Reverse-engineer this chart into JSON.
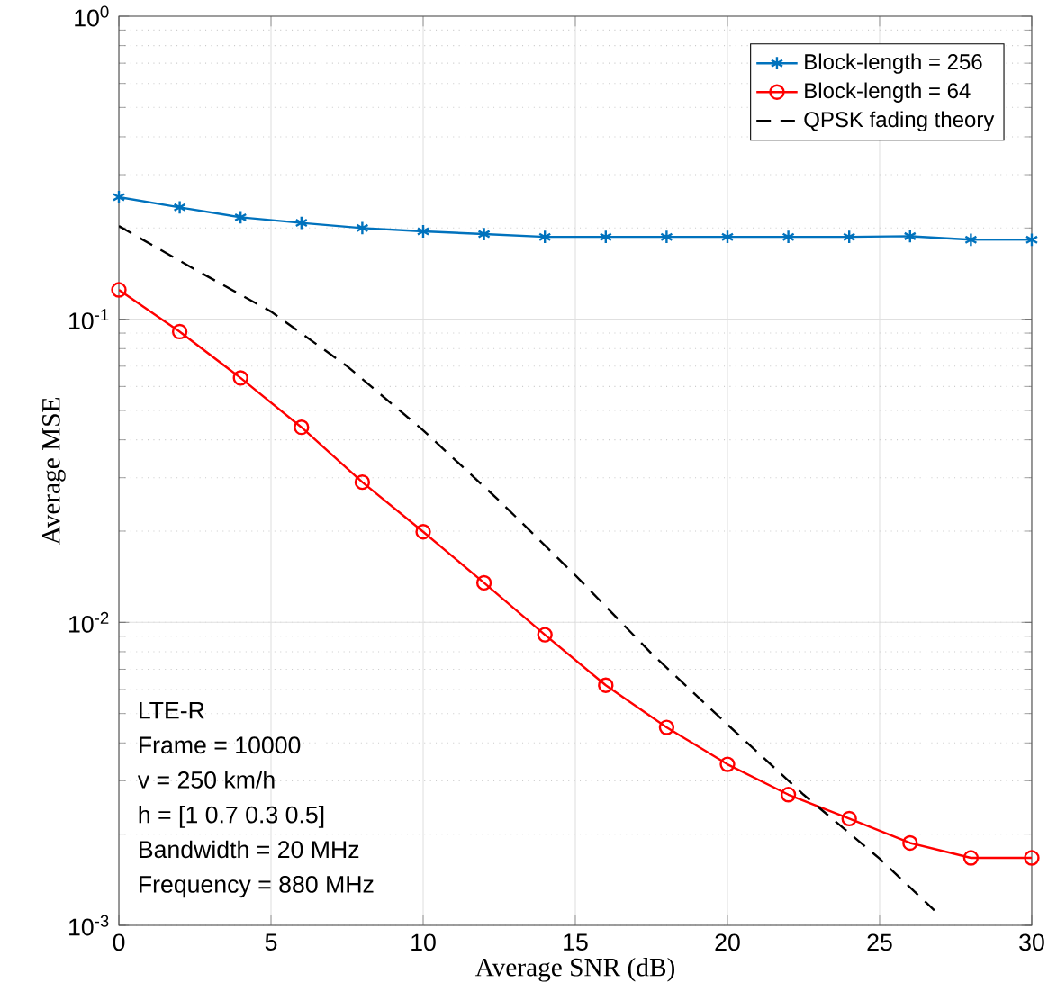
{
  "chart_data": {
    "type": "line",
    "xlabel": "Average SNR (dB)",
    "ylabel": "Average MSE",
    "log": "y",
    "grid": true,
    "legend": "top right",
    "xlim": [
      0,
      30
    ],
    "xticks": [
      0,
      5,
      10,
      15,
      20,
      25,
      30
    ],
    "ylim": [
      0.001,
      1
    ],
    "yticks": [
      {
        "value": 0.001,
        "label": "10$^{-3}$"
      },
      {
        "value": 0.01,
        "label": "10$^{-2}$"
      },
      {
        "value": 0.1,
        "label": "10$^{-1}$"
      },
      {
        "value": 1,
        "label": "10$^{0}$"
      }
    ],
    "x": [
      0,
      2,
      4,
      6,
      8,
      10,
      12,
      14,
      16,
      18,
      20,
      22,
      24,
      26,
      28,
      30
    ],
    "series": [
      {
        "name": "Block-length = 256",
        "color": "#0072bd",
        "marker": "cross",
        "line_style": "solid",
        "values": [
          0.253,
          0.234,
          0.217,
          0.208,
          0.2,
          0.195,
          0.191,
          0.187,
          0.187,
          0.187,
          0.187,
          0.187,
          0.187,
          0.188,
          0.183,
          0.183
        ]
      },
      {
        "name": "Block-length = 64",
        "color": "#ff0000",
        "marker": "circle",
        "line_style": "solid",
        "values": [
          0.125,
          0.091,
          0.064,
          0.044,
          0.029,
          0.0199,
          0.0135,
          0.0091,
          0.0062,
          0.0045,
          0.0034,
          0.0027,
          0.00225,
          0.00187,
          0.00167,
          0.00167
        ]
      },
      {
        "name": "QPSK fading theory",
        "color": "#000000",
        "marker": "none",
        "line_style": "dashed",
        "x": [
          0,
          2.5,
          5,
          7.5,
          10,
          12.5,
          15,
          17.5,
          20,
          22.5,
          25,
          26.8
        ],
        "values": [
          0.203,
          0.146,
          0.106,
          0.07,
          0.043,
          0.0252,
          0.0143,
          0.0079,
          0.0046,
          0.0027,
          0.00166,
          0.00112
        ]
      }
    ],
    "annotations": [
      "LTE-R",
      "Frame = 10000",
      "v = 250 km/h",
      "h = [1 0.7 0.3 0.5]",
      "Bandwidth = 20 MHz",
      "Frequency = 880 MHz"
    ]
  }
}
